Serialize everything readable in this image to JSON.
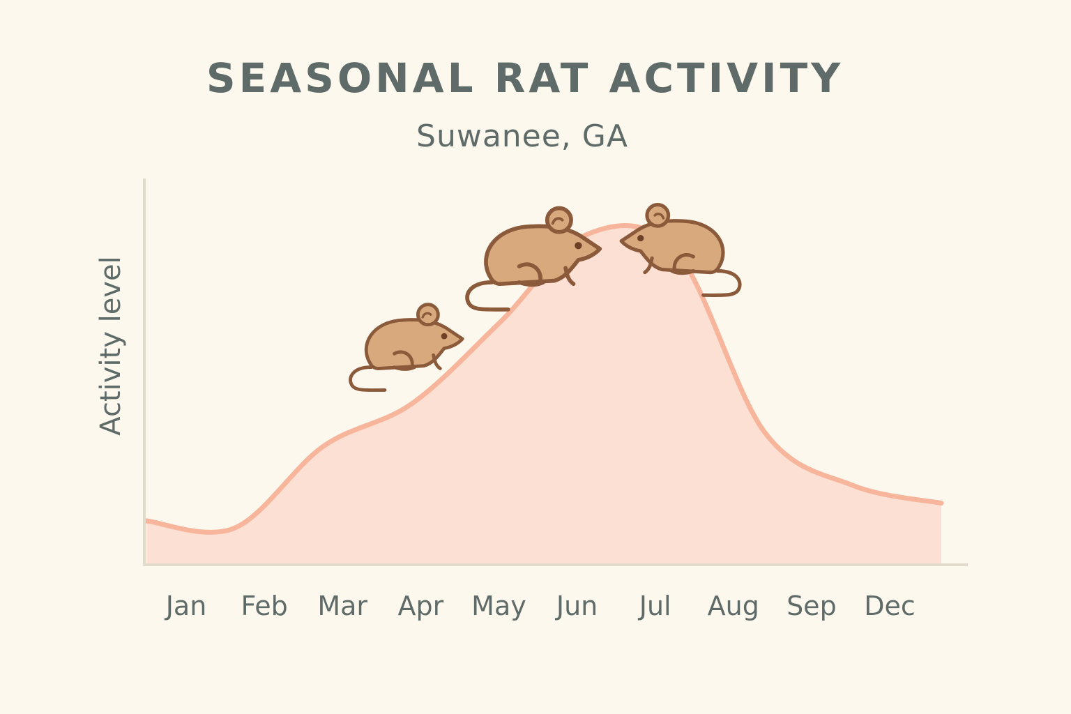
{
  "chart_data": {
    "type": "area",
    "title": "SEASONAL RAT ACTIVITY",
    "subtitle": "Suwanee, GA",
    "xlabel": "",
    "ylabel": "Activity level",
    "categories": [
      "Jan",
      "Feb",
      "Mar",
      "Apr",
      "May",
      "Jun",
      "Jul",
      "Aug",
      "Sep",
      "Dec"
    ],
    "series": [
      {
        "values": [
          12,
          10,
          33,
          45,
          68,
          93,
          88,
          37,
          22,
          17
        ]
      }
    ],
    "ylim": [
      0,
      100
    ],
    "grid": false,
    "legend": "none",
    "y_ticks_shown": false
  },
  "decorations": {
    "icons": [
      "rat-icon",
      "rat-icon",
      "rat-icon"
    ]
  },
  "colors": {
    "background": "#fdf8ee",
    "text": "#5f6b68",
    "line": "#f7b69c",
    "fill": "#fde0d4",
    "axis": "#e3dccd",
    "rat_body": "#d9a97e",
    "rat_outline": "#8a5a3b"
  }
}
